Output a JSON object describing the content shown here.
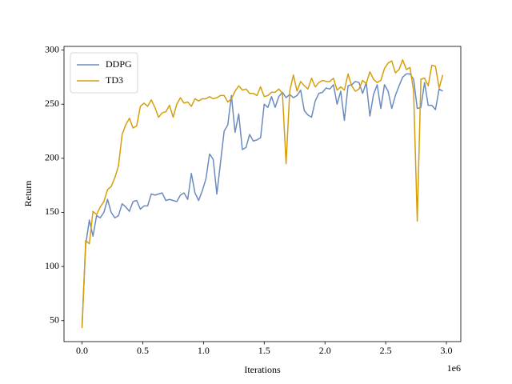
{
  "chart_data": {
    "type": "line",
    "xlabel": "Iterations",
    "ylabel": "Return",
    "x_offset_label": "1e6",
    "x": [
      0,
      30000,
      60000,
      90000,
      120000,
      150000,
      180000,
      210000,
      240000,
      270000,
      300000,
      330000,
      360000,
      390000,
      420000,
      450000,
      480000,
      510000,
      540000,
      570000,
      600000,
      630000,
      660000,
      690000,
      720000,
      750000,
      780000,
      810000,
      840000,
      870000,
      900000,
      930000,
      960000,
      990000,
      1020000,
      1050000,
      1080000,
      1110000,
      1140000,
      1170000,
      1200000,
      1230000,
      1260000,
      1290000,
      1320000,
      1350000,
      1380000,
      1410000,
      1440000,
      1470000,
      1500000,
      1530000,
      1560000,
      1590000,
      1620000,
      1650000,
      1680000,
      1710000,
      1740000,
      1770000,
      1800000,
      1830000,
      1860000,
      1890000,
      1920000,
      1950000,
      1980000,
      2010000,
      2040000,
      2070000,
      2100000,
      2130000,
      2160000,
      2190000,
      2220000,
      2250000,
      2280000,
      2310000,
      2340000,
      2370000,
      2400000,
      2430000,
      2460000,
      2490000,
      2520000,
      2550000,
      2580000,
      2610000,
      2640000,
      2670000,
      2700000,
      2730000,
      2760000,
      2790000,
      2820000,
      2850000,
      2880000,
      2910000,
      2940000,
      2970000
    ],
    "series": [
      {
        "name": "DDPG",
        "color": "#6a8bbf",
        "values": [
          45,
          120,
          143,
          128,
          147,
          145,
          150,
          162,
          150,
          145,
          147,
          158,
          155,
          151,
          160,
          161,
          153,
          156,
          156,
          167,
          166,
          167,
          168,
          161,
          162,
          161,
          160,
          166,
          168,
          162,
          186,
          168,
          161,
          170,
          181,
          204,
          199,
          167,
          196,
          225,
          231,
          258,
          224,
          241,
          208,
          210,
          222,
          216,
          217,
          219,
          250,
          247,
          257,
          247,
          257,
          261,
          256,
          259,
          256,
          258,
          263,
          244,
          240,
          238,
          253,
          260,
          261,
          265,
          264,
          268,
          250,
          262,
          235,
          267,
          268,
          271,
          270,
          260,
          270,
          239,
          259,
          268,
          246,
          268,
          262,
          246,
          258,
          267,
          275,
          278,
          278,
          273,
          246,
          247,
          270,
          249,
          249,
          245,
          264,
          262
        ]
      },
      {
        "name": "TD3",
        "color": "#d69e0b",
        "values": [
          43,
          124,
          121,
          151,
          148,
          155,
          160,
          171,
          174,
          182,
          193,
          222,
          231,
          237,
          228,
          230,
          248,
          251,
          248,
          254,
          247,
          238,
          242,
          243,
          249,
          238,
          250,
          256,
          251,
          252,
          248,
          255,
          253,
          255,
          255,
          257,
          255,
          256,
          258,
          258,
          252,
          255,
          262,
          267,
          263,
          264,
          260,
          260,
          258,
          266,
          257,
          258,
          261,
          261,
          264,
          260,
          195,
          262,
          277,
          262,
          271,
          267,
          264,
          274,
          266,
          270,
          272,
          271,
          271,
          274,
          263,
          266,
          263,
          278,
          267,
          262,
          264,
          272,
          269,
          280,
          273,
          270,
          272,
          283,
          288,
          290,
          279,
          282,
          291,
          282,
          284,
          262,
          142,
          273,
          274,
          267,
          286,
          285,
          265,
          277
        ]
      }
    ],
    "xlim": [
      -148500,
      3118500
    ],
    "xticks": [
      {
        "value": 0,
        "label": "0.0"
      },
      {
        "value": 500000,
        "label": "0.5"
      },
      {
        "value": 1000000,
        "label": "1.0"
      },
      {
        "value": 1500000,
        "label": "1.5"
      },
      {
        "value": 2000000,
        "label": "2.0"
      },
      {
        "value": 2500000,
        "label": "2.5"
      },
      {
        "value": 3000000,
        "label": "3.0"
      }
    ],
    "ylim": [
      30.6,
      303.4
    ],
    "yticks": [
      50,
      100,
      150,
      200,
      250,
      300
    ],
    "grid": false,
    "legend": "upper left"
  }
}
